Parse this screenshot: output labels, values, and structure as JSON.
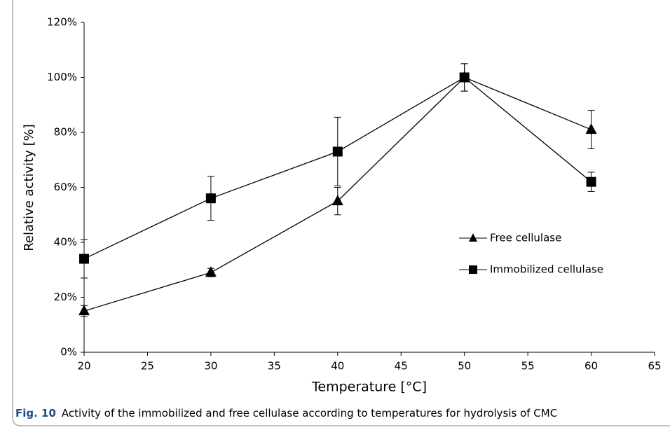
{
  "chart_data": {
    "type": "line",
    "x_label": "Temperature [°C]",
    "y_label": "Relative activity [%]",
    "xlim": [
      20,
      65
    ],
    "xticks": [
      20,
      25,
      30,
      35,
      40,
      45,
      50,
      55,
      60,
      65
    ],
    "ylim": [
      0,
      120
    ],
    "yticks": [
      {
        "value": 0,
        "label": "0%"
      },
      {
        "value": 20,
        "label": "20%"
      },
      {
        "value": 40,
        "label": "40%"
      },
      {
        "value": 60,
        "label": "60%"
      },
      {
        "value": 80,
        "label": "80%"
      },
      {
        "value": 100,
        "label": "100%"
      },
      {
        "value": 120,
        "label": "120%"
      }
    ],
    "x": [
      20,
      30,
      40,
      50,
      60
    ],
    "legend": "right",
    "series": [
      {
        "name": "Free cellulase",
        "color": "#000000",
        "marker": "triangle",
        "values": [
          15,
          29,
          55,
          100,
          81
        ],
        "errors": [
          2,
          1.5,
          5,
          5,
          7
        ]
      },
      {
        "name": "Immobilized cellulase",
        "color": "#000000",
        "marker": "square",
        "values": [
          34,
          56,
          73,
          100,
          62
        ],
        "errors": [
          7,
          8,
          12.5,
          5,
          3.5
        ]
      }
    ]
  },
  "caption": {
    "label": "Fig. 10",
    "text": "Activity of the immobilized and free cellulase according to temperatures for hydrolysis of CMC"
  }
}
